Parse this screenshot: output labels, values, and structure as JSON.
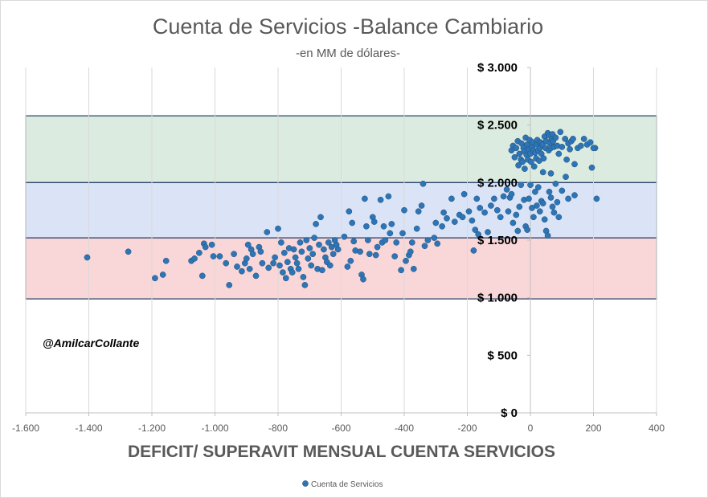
{
  "chart_data": {
    "type": "scatter",
    "title": "Cuenta de Servicios -Balance Cambiario",
    "subtitle": "-en MM de dólares-",
    "xlabel": "DEFICIT/ SUPERAVIT MENSUAL CUENTA SERVICIOS",
    "ylabel": "",
    "xlim": [
      -1600,
      400
    ],
    "ylim": [
      0,
      3000
    ],
    "x_ticks": [
      -1600,
      -1400,
      -1200,
      -1000,
      -800,
      -600,
      -400,
      -200,
      0,
      200,
      400
    ],
    "x_tick_labels": [
      "-1.600",
      "-1.400",
      "-1.200",
      "-1.000",
      "-800",
      "-600",
      "-400",
      "-200",
      "0",
      "200",
      "400"
    ],
    "y_ticks": [
      0,
      500,
      1000,
      1500,
      2000,
      2500,
      3000
    ],
    "y_tick_labels": [
      "$ 0",
      "$ 500",
      "$ 1.000",
      "$ 1.500",
      "$ 2.000",
      "$ 2.500",
      "$ 3.000"
    ],
    "grid": {
      "vertical": true,
      "horizontal": false
    },
    "legend_position": "bottom",
    "watermark": "@AmilcarCollante",
    "colors": {
      "marker": "#2e75b6",
      "marker_edge": "#1f4e79",
      "grid": "#d9d9d9",
      "axis": "#bfbfbf"
    },
    "bands": [
      {
        "name": "green",
        "y_from": 2000,
        "y_to": 2580,
        "fill": "#dcebdf",
        "stroke": "#1f3864"
      },
      {
        "name": "blue",
        "y_from": 1520,
        "y_to": 2000,
        "fill": "#dbe4f7",
        "stroke": "#1f3864"
      },
      {
        "name": "red",
        "y_from": 990,
        "y_to": 1520,
        "fill": "#f9d7d9",
        "stroke": "#1f3864"
      }
    ],
    "series": [
      {
        "name": "Cuenta de Servicios",
        "points": [
          [
            -1405,
            1350
          ],
          [
            -1275,
            1400
          ],
          [
            -1190,
            1170
          ],
          [
            -1165,
            1200
          ],
          [
            -1155,
            1320
          ],
          [
            -1075,
            1320
          ],
          [
            -1065,
            1340
          ],
          [
            -1050,
            1390
          ],
          [
            -1040,
            1190
          ],
          [
            -1035,
            1470
          ],
          [
            -1030,
            1440
          ],
          [
            -1010,
            1460
          ],
          [
            -1005,
            1360
          ],
          [
            -985,
            1360
          ],
          [
            -965,
            1300
          ],
          [
            -955,
            1110
          ],
          [
            -940,
            1380
          ],
          [
            -930,
            1270
          ],
          [
            -915,
            1230
          ],
          [
            -905,
            1300
          ],
          [
            -900,
            1340
          ],
          [
            -895,
            1460
          ],
          [
            -890,
            1250
          ],
          [
            -885,
            1420
          ],
          [
            -880,
            1380
          ],
          [
            -870,
            1190
          ],
          [
            -860,
            1440
          ],
          [
            -855,
            1400
          ],
          [
            -850,
            1300
          ],
          [
            -835,
            1570
          ],
          [
            -830,
            1260
          ],
          [
            -815,
            1300
          ],
          [
            -810,
            1350
          ],
          [
            -800,
            1600
          ],
          [
            -795,
            1280
          ],
          [
            -790,
            1480
          ],
          [
            -785,
            1220
          ],
          [
            -780,
            1390
          ],
          [
            -775,
            1170
          ],
          [
            -770,
            1310
          ],
          [
            -765,
            1430
          ],
          [
            -760,
            1250
          ],
          [
            -755,
            1220
          ],
          [
            -750,
            1420
          ],
          [
            -745,
            1350
          ],
          [
            -740,
            1300
          ],
          [
            -735,
            1250
          ],
          [
            -730,
            1480
          ],
          [
            -725,
            1400
          ],
          [
            -720,
            1180
          ],
          [
            -715,
            1110
          ],
          [
            -710,
            1500
          ],
          [
            -705,
            1340
          ],
          [
            -700,
            1430
          ],
          [
            -695,
            1280
          ],
          [
            -690,
            1380
          ],
          [
            -685,
            1520
          ],
          [
            -680,
            1640
          ],
          [
            -675,
            1250
          ],
          [
            -670,
            1460
          ],
          [
            -665,
            1700
          ],
          [
            -660,
            1240
          ],
          [
            -655,
            1420
          ],
          [
            -650,
            1350
          ],
          [
            -645,
            1310
          ],
          [
            -640,
            1480
          ],
          [
            -635,
            1280
          ],
          [
            -630,
            1440
          ],
          [
            -625,
            1380
          ],
          [
            -620,
            1500
          ],
          [
            -615,
            1460
          ],
          [
            -610,
            1420
          ],
          [
            -590,
            1530
          ],
          [
            -580,
            1270
          ],
          [
            -575,
            1750
          ],
          [
            -570,
            1320
          ],
          [
            -565,
            1650
          ],
          [
            -560,
            1490
          ],
          [
            -555,
            1410
          ],
          [
            -540,
            1400
          ],
          [
            -535,
            1200
          ],
          [
            -530,
            1160
          ],
          [
            -525,
            1860
          ],
          [
            -520,
            1620
          ],
          [
            -515,
            1500
          ],
          [
            -510,
            1380
          ],
          [
            -500,
            1700
          ],
          [
            -495,
            1660
          ],
          [
            -490,
            1370
          ],
          [
            -485,
            1440
          ],
          [
            -475,
            1850
          ],
          [
            -470,
            1480
          ],
          [
            -465,
            1620
          ],
          [
            -460,
            1500
          ],
          [
            -450,
            1880
          ],
          [
            -445,
            1560
          ],
          [
            -440,
            1640
          ],
          [
            -430,
            1360
          ],
          [
            -425,
            1480
          ],
          [
            -410,
            1240
          ],
          [
            -405,
            1560
          ],
          [
            -400,
            1760
          ],
          [
            -395,
            1320
          ],
          [
            -385,
            1370
          ],
          [
            -380,
            1400
          ],
          [
            -375,
            1480
          ],
          [
            -370,
            1250
          ],
          [
            -360,
            1600
          ],
          [
            -355,
            1750
          ],
          [
            -345,
            1800
          ],
          [
            -340,
            1990
          ],
          [
            -335,
            1450
          ],
          [
            -325,
            1500
          ],
          [
            -305,
            1520
          ],
          [
            -300,
            1650
          ],
          [
            -295,
            1470
          ],
          [
            -280,
            1620
          ],
          [
            -275,
            1740
          ],
          [
            -265,
            1690
          ],
          [
            -250,
            1860
          ],
          [
            -240,
            1660
          ],
          [
            -225,
            1720
          ],
          [
            -215,
            1700
          ],
          [
            -210,
            1900
          ],
          [
            -195,
            1750
          ],
          [
            -185,
            1670
          ],
          [
            -180,
            1410
          ],
          [
            -175,
            1590
          ],
          [
            -170,
            1860
          ],
          [
            -165,
            1550
          ],
          [
            -160,
            1780
          ],
          [
            -145,
            1740
          ],
          [
            -135,
            1570
          ],
          [
            -125,
            1800
          ],
          [
            -115,
            1860
          ],
          [
            -105,
            1760
          ],
          [
            -95,
            1700
          ],
          [
            -85,
            1880
          ],
          [
            -75,
            1940
          ],
          [
            -70,
            1750
          ],
          [
            -65,
            1870
          ],
          [
            -60,
            1900
          ],
          [
            -55,
            1650
          ],
          [
            -45,
            1720
          ],
          [
            -40,
            1580
          ],
          [
            -35,
            1790
          ],
          [
            -30,
            1980
          ],
          [
            -20,
            1850
          ],
          [
            -15,
            1620
          ],
          [
            -10,
            1590
          ],
          [
            -5,
            1860
          ],
          [
            0,
            1980
          ],
          [
            5,
            1780
          ],
          [
            10,
            1700
          ],
          [
            15,
            1920
          ],
          [
            20,
            1800
          ],
          [
            25,
            1960
          ],
          [
            30,
            1750
          ],
          [
            35,
            1840
          ],
          [
            40,
            1820
          ],
          [
            45,
            1680
          ],
          [
            50,
            1580
          ],
          [
            55,
            1540
          ],
          [
            60,
            1920
          ],
          [
            65,
            1870
          ],
          [
            70,
            1790
          ],
          [
            75,
            1740
          ],
          [
            80,
            1990
          ],
          [
            85,
            1830
          ],
          [
            90,
            1700
          ],
          [
            100,
            1930
          ],
          [
            120,
            1860
          ],
          [
            140,
            1890
          ],
          [
            195,
            2130
          ],
          [
            205,
            2300
          ],
          [
            210,
            1860
          ],
          [
            -60,
            2280
          ],
          [
            -55,
            2320
          ],
          [
            -50,
            2220
          ],
          [
            -45,
            2300
          ],
          [
            -40,
            2360
          ],
          [
            -38,
            2150
          ],
          [
            -35,
            2250
          ],
          [
            -30,
            2200
          ],
          [
            -28,
            2340
          ],
          [
            -25,
            2180
          ],
          [
            -22,
            2300
          ],
          [
            -20,
            2270
          ],
          [
            -18,
            2120
          ],
          [
            -15,
            2390
          ],
          [
            -12,
            2240
          ],
          [
            -10,
            2330
          ],
          [
            -8,
            2200
          ],
          [
            -5,
            2290
          ],
          [
            -2,
            2370
          ],
          [
            0,
            2250
          ],
          [
            2,
            2180
          ],
          [
            5,
            2310
          ],
          [
            8,
            2350
          ],
          [
            10,
            2280
          ],
          [
            12,
            2140
          ],
          [
            15,
            2260
          ],
          [
            18,
            2210
          ],
          [
            20,
            2330
          ],
          [
            22,
            2370
          ],
          [
            25,
            2280
          ],
          [
            28,
            2190
          ],
          [
            30,
            2300
          ],
          [
            32,
            2350
          ],
          [
            35,
            2250
          ],
          [
            38,
            2330
          ],
          [
            40,
            2090
          ],
          [
            42,
            2210
          ],
          [
            45,
            2400
          ],
          [
            48,
            2300
          ],
          [
            50,
            2360
          ],
          [
            55,
            2430
          ],
          [
            58,
            2280
          ],
          [
            60,
            2410
          ],
          [
            62,
            2340
          ],
          [
            65,
            2300
          ],
          [
            68,
            2380
          ],
          [
            70,
            2420
          ],
          [
            72,
            2360
          ],
          [
            75,
            2310
          ],
          [
            80,
            2390
          ],
          [
            85,
            2320
          ],
          [
            90,
            2250
          ],
          [
            95,
            2440
          ],
          [
            100,
            2310
          ],
          [
            110,
            2380
          ],
          [
            115,
            2200
          ],
          [
            120,
            2340
          ],
          [
            125,
            2290
          ],
          [
            130,
            2360
          ],
          [
            135,
            2380
          ],
          [
            140,
            2160
          ],
          [
            150,
            2300
          ],
          [
            160,
            2320
          ],
          [
            170,
            2380
          ],
          [
            180,
            2330
          ],
          [
            190,
            2350
          ],
          [
            200,
            2300
          ],
          [
            112,
            2050
          ],
          [
            65,
            2080
          ]
        ]
      }
    ]
  }
}
